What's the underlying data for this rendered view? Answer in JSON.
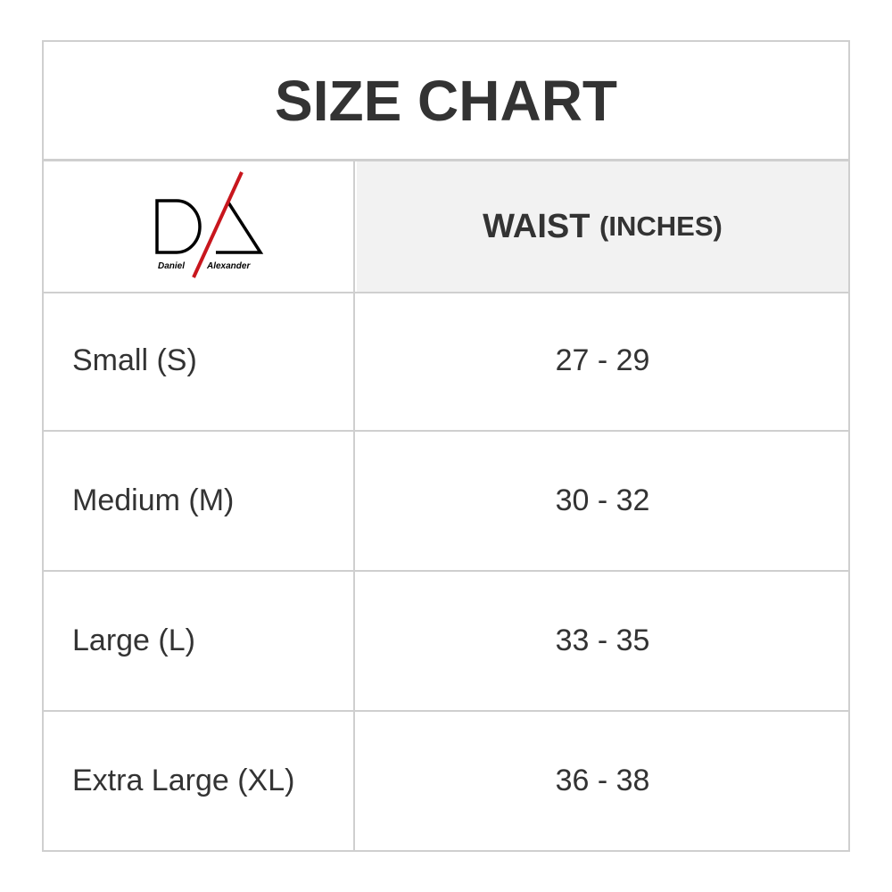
{
  "title": "SIZE CHART",
  "logo": {
    "text_left": "Daniel",
    "text_right": "Alexander",
    "accent": "#c8161d"
  },
  "header": {
    "col2": "WAIST",
    "col2_unit": "(INCHES)"
  },
  "rows": [
    {
      "size": "Small (S)",
      "waist": "27 - 29"
    },
    {
      "size": "Medium (M)",
      "waist": "30 - 32"
    },
    {
      "size": "Large (L)",
      "waist": "33 - 35"
    },
    {
      "size": "Extra Large (XL)",
      "waist": "36 - 38"
    }
  ]
}
